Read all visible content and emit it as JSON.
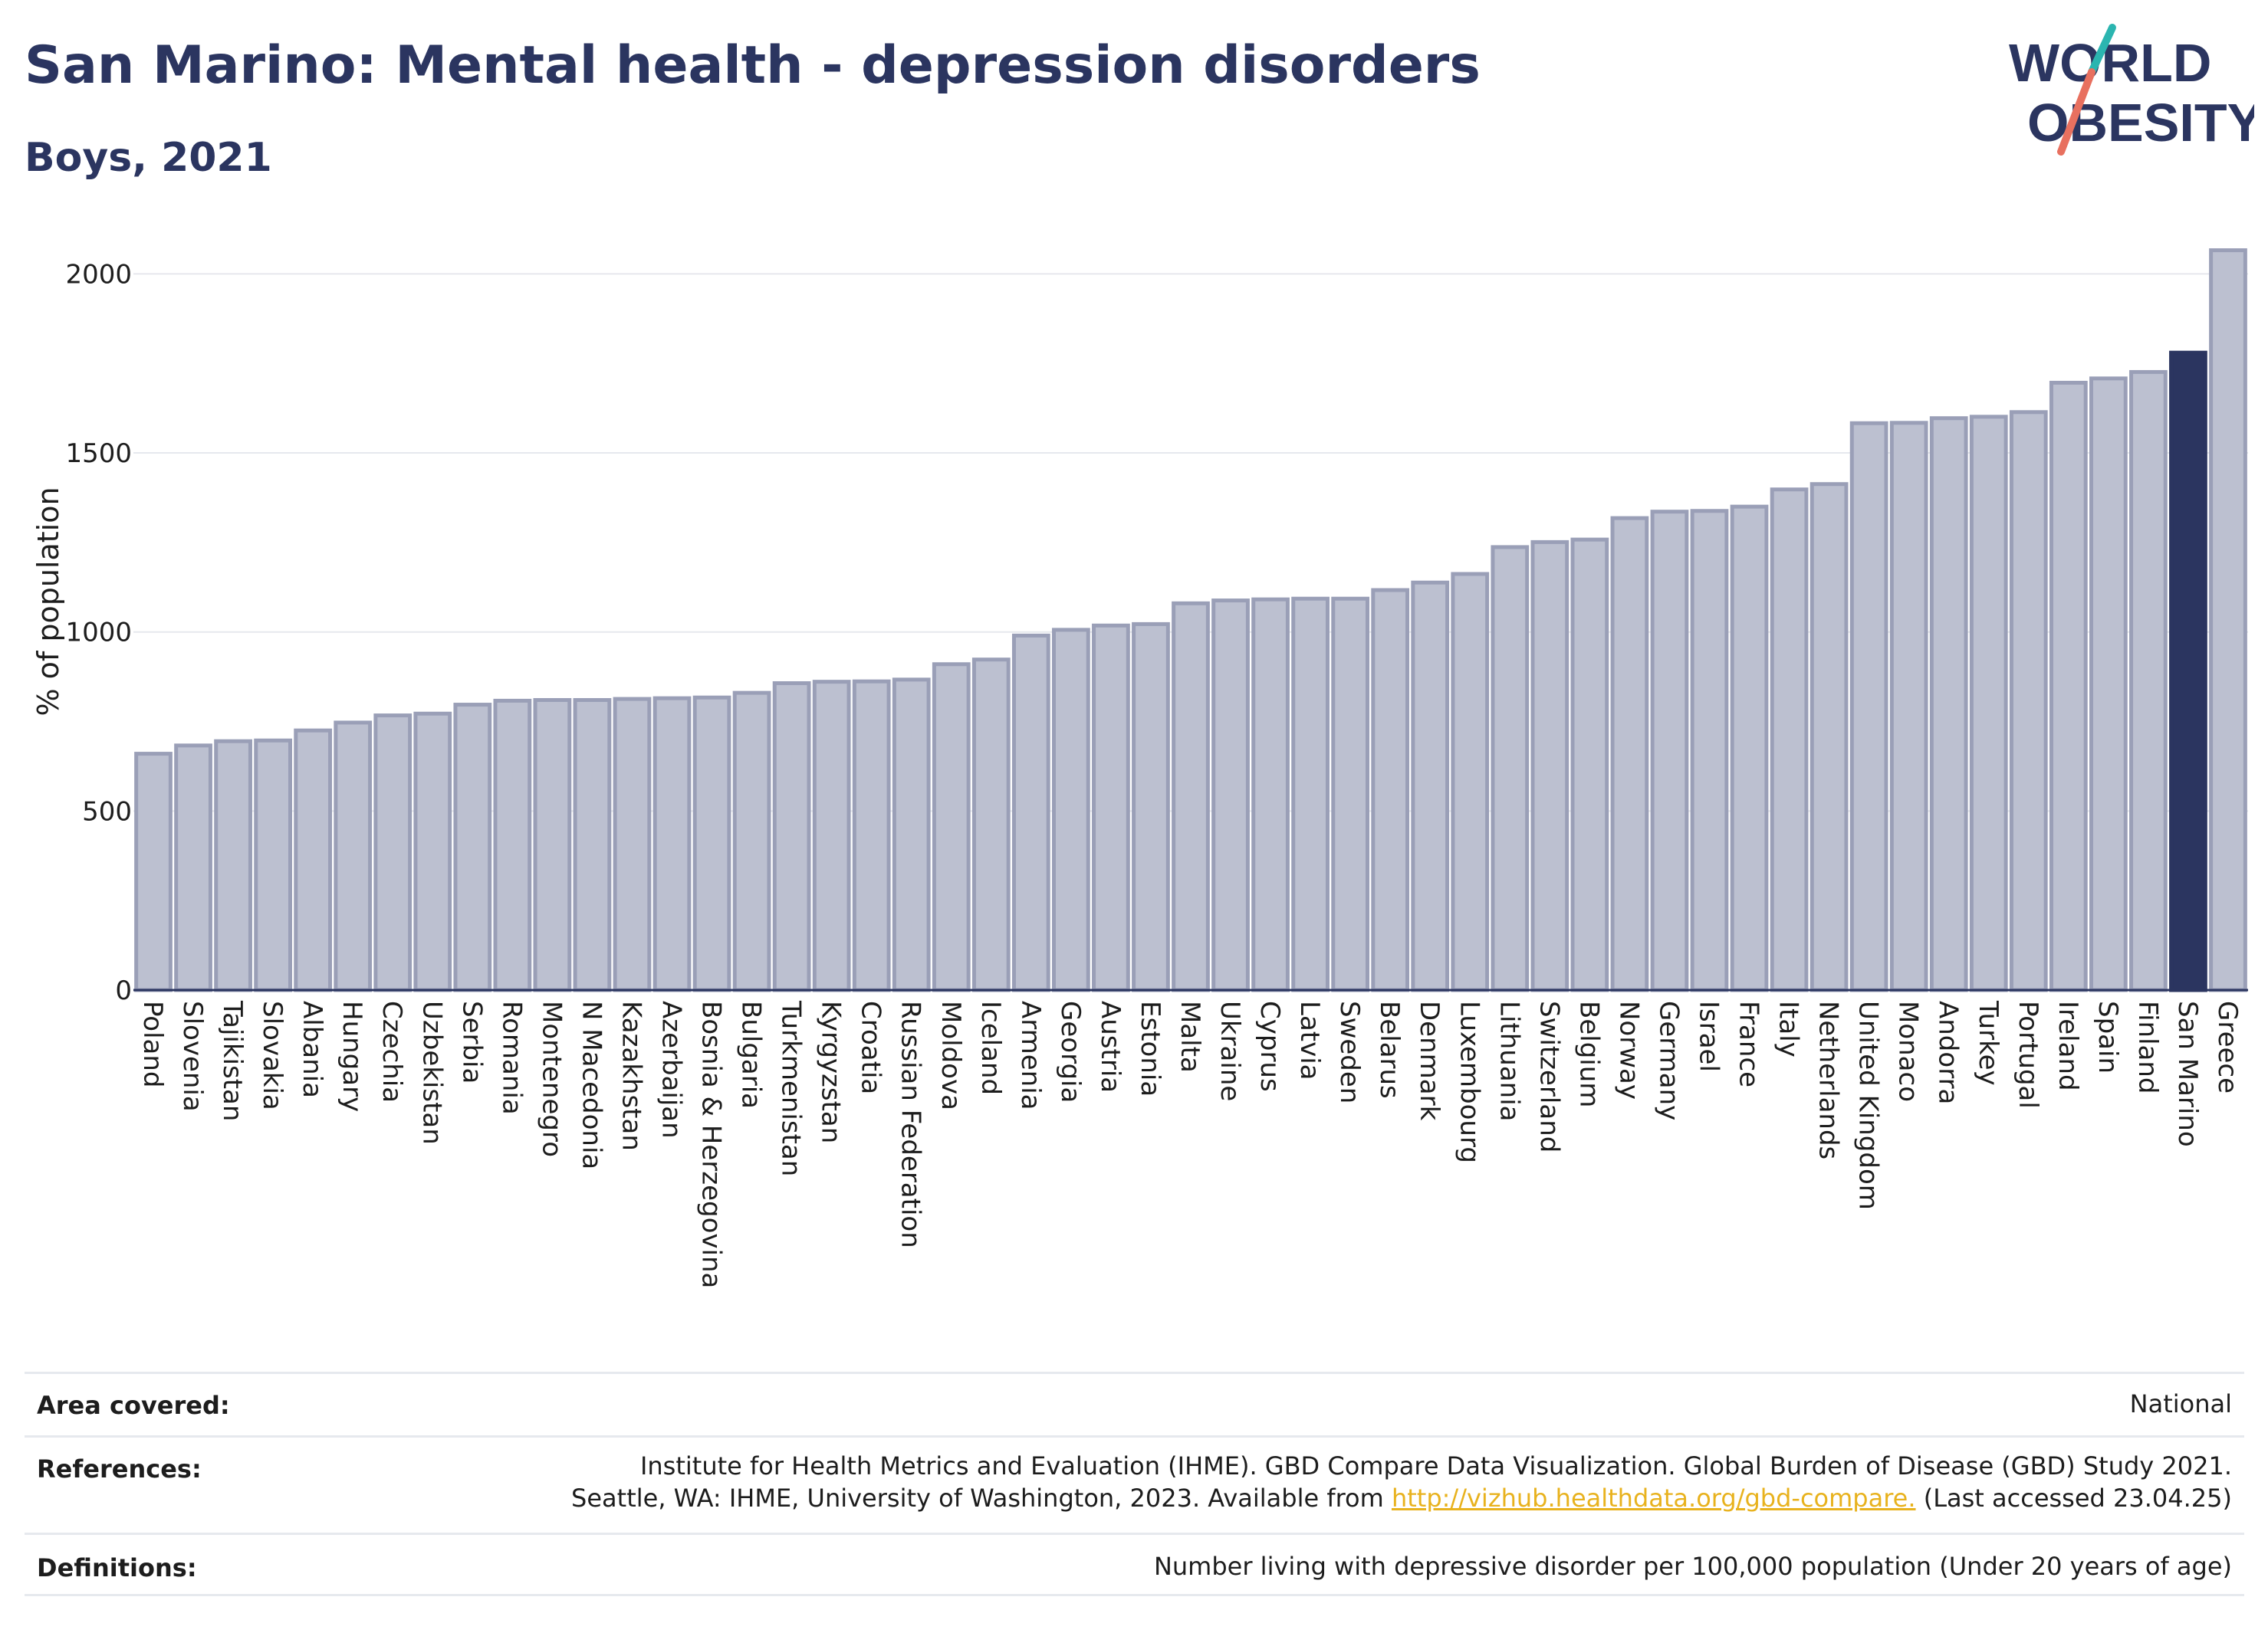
{
  "header": {
    "title": "San Marino: Mental health - depression disorders",
    "subtitle": "Boys, 2021"
  },
  "logo": {
    "line1": "WORLD",
    "line2": "OBESITY",
    "colors": {
      "text": "#2b3560",
      "slash_teal": "#2bb5b0",
      "slash_coral": "#e8705f"
    }
  },
  "chart_data": {
    "type": "bar",
    "title": "San Marino: Mental health - depression disorders",
    "subtitle": "Boys, 2021",
    "ylabel": "% of population",
    "xlabel": "",
    "ylim": [
      0,
      2080
    ],
    "yticks": [
      0,
      500,
      1000,
      1500,
      2000
    ],
    "grid": true,
    "highlight": "San Marino",
    "colors": {
      "bar": "#bcc0d0",
      "bar_edge": "#9a9fb7",
      "highlight": "#2b3560"
    },
    "categories": [
      "Poland",
      "Slovenia",
      "Tajikistan",
      "Slovakia",
      "Albania",
      "Hungary",
      "Czechia",
      "Uzbekistan",
      "Serbia",
      "Romania",
      "Montenegro",
      "N Macedonia",
      "Kazakhstan",
      "Azerbaijan",
      "Bosnia & Herzegovina",
      "Bulgaria",
      "Turkmenistan",
      "Kyrgyzstan",
      "Croatia",
      "Russian Federation",
      "Moldova",
      "Iceland",
      "Armenia",
      "Georgia",
      "Austria",
      "Estonia",
      "Malta",
      "Ukraine",
      "Cyprus",
      "Latvia",
      "Sweden",
      "Belarus",
      "Denmark",
      "Luxembourg",
      "Lithuania",
      "Switzerland",
      "Belgium",
      "Norway",
      "Germany",
      "Israel",
      "France",
      "Italy",
      "Netherlands",
      "United Kingdom",
      "Monaco",
      "Andorra",
      "Turkey",
      "Portugal",
      "Ireland",
      "Spain",
      "Finland",
      "San Marino",
      "Greece"
    ],
    "values": [
      660,
      683,
      695,
      697,
      725,
      747,
      767,
      772,
      797,
      808,
      810,
      810,
      813,
      815,
      817,
      830,
      857,
      861,
      862,
      867,
      910,
      923,
      990,
      1006,
      1018,
      1022,
      1080,
      1088,
      1091,
      1093,
      1093,
      1117,
      1138,
      1162,
      1237,
      1251,
      1258,
      1318,
      1336,
      1338,
      1350,
      1398,
      1413,
      1583,
      1584,
      1597,
      1601,
      1614,
      1696,
      1708,
      1726,
      1780,
      2066
    ]
  },
  "meta": {
    "area_label": "Area covered:",
    "area_value": "National",
    "references_label": "References:",
    "references_line1": "Institute for Health Metrics and Evaluation (IHME). GBD Compare Data Visualization. Global Burden of Disease (GBD) Study 2021.",
    "references_line2_pre": "Seattle, WA: IHME, University of Washington, 2023. Available from ",
    "references_link": "http://vizhub.healthdata.org/gbd-compare.",
    "references_line2_post": " (Last accessed 23.04.25)",
    "definitions_label": "Definitions:",
    "definitions_value": "Number living with depressive disorder per 100,000 population (Under 20 years of age)"
  }
}
